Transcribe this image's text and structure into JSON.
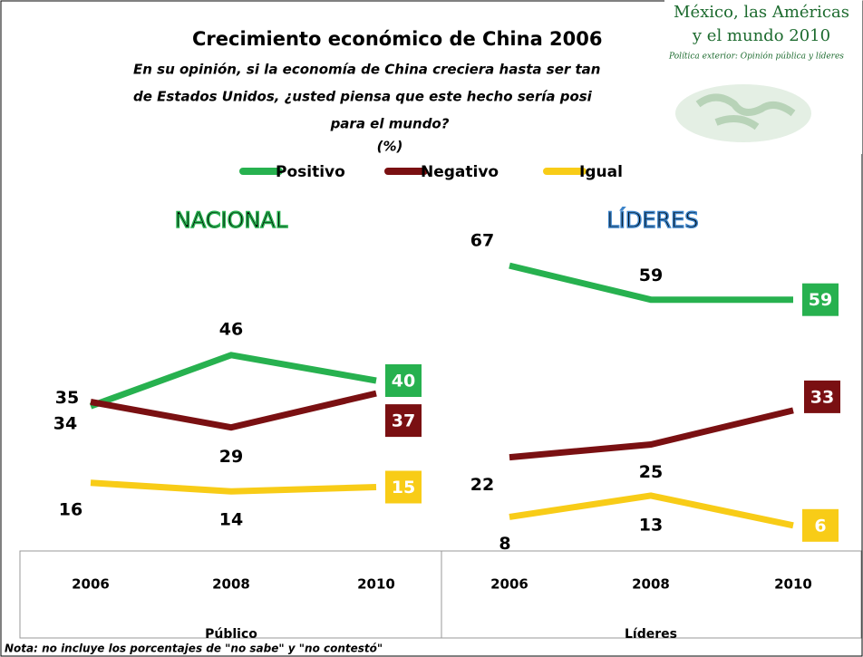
{
  "title": "Crecimiento económico de China 2006",
  "question": [
    "En su opinión, si la economía de China creciera hasta ser tan",
    "de Estados Unidos, ¿usted piensa que este hecho sería posi",
    "para el mundo?",
    "(%)"
  ],
  "logo": [
    "México, las Américas",
    "y el mundo 2010",
    "Política exterior: Opinión pública y líderes"
  ],
  "note": "Nota: no incluye los porcentajes de \"no sabe\" y \"no contestó\"",
  "chart_data": [
    {
      "type": "line",
      "title": "NACIONAL",
      "x_label": "Público",
      "categories": [
        "2006",
        "2008",
        "2010"
      ],
      "ylim": [
        0,
        70
      ],
      "series": [
        {
          "name": "Positivo",
          "color": "#27b14f",
          "values": [
            34,
            46,
            40
          ]
        },
        {
          "name": "Negativo",
          "color": "#7a1012",
          "values": [
            35,
            29,
            37
          ]
        },
        {
          "name": "Igual",
          "color": "#f8cc17",
          "values": [
            16,
            14,
            15
          ]
        }
      ]
    },
    {
      "type": "line",
      "title": "LÍDERES",
      "x_label": "Líderes",
      "categories": [
        "2006",
        "2008",
        "2010"
      ],
      "ylim": [
        0,
        70
      ],
      "series": [
        {
          "color": "#27b14f",
          "values": [
            67,
            59,
            59
          ]
        },
        {
          "color": "#7a1012",
          "values": [
            22,
            25,
            33
          ]
        },
        {
          "color": "#f8cc17",
          "values": [
            8,
            13,
            6
          ]
        }
      ]
    }
  ]
}
